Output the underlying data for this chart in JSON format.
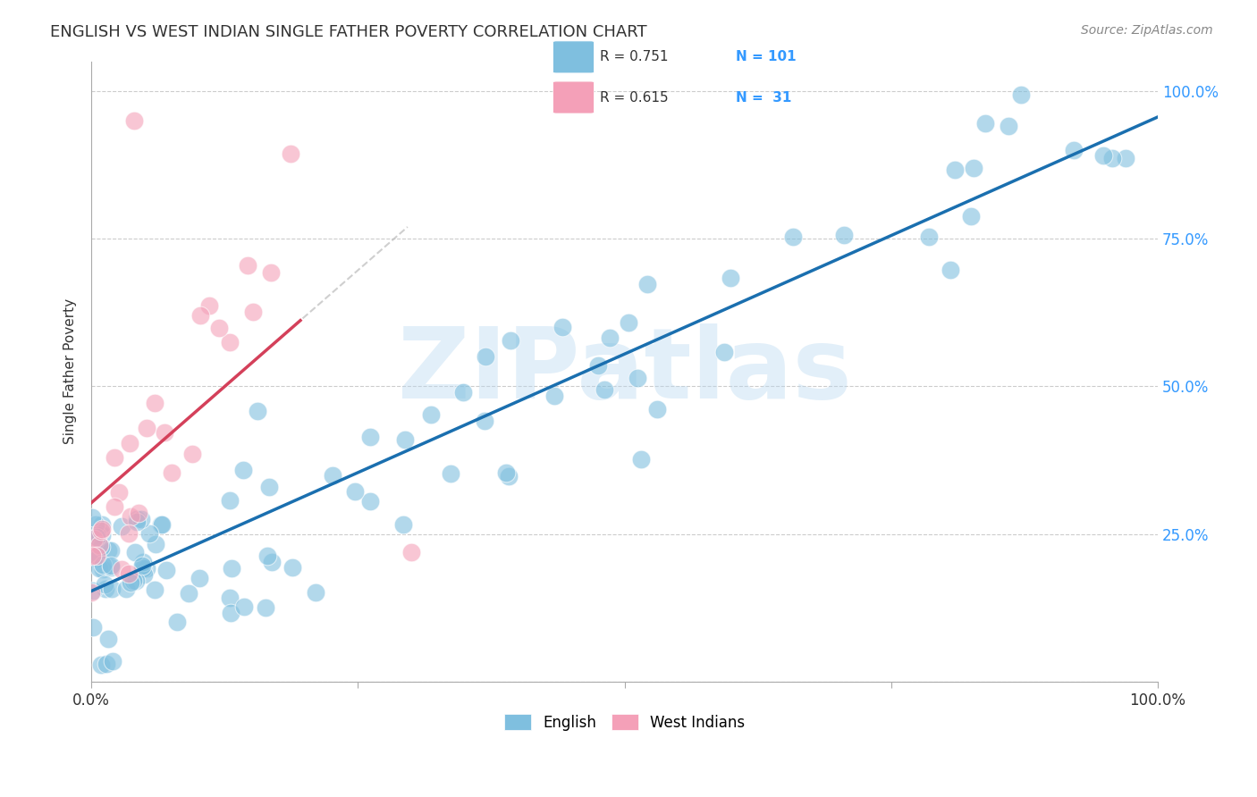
{
  "title": "ENGLISH VS WEST INDIAN SINGLE FATHER POVERTY CORRELATION CHART",
  "source": "Source: ZipAtlas.com",
  "ylabel": "Single Father Poverty",
  "english_R": 0.751,
  "english_N": 101,
  "westindian_R": 0.615,
  "westindian_N": 31,
  "english_color": "#7fbfdf",
  "westindian_color": "#f4a0b8",
  "english_line_color": "#1a6faf",
  "westindian_line_color": "#d4405a",
  "watermark": "ZIPatlas",
  "watermark_color": "#b8d8f0",
  "background_color": "#ffffff",
  "legend_R_color": "#333333",
  "legend_N_color": "#3399ff",
  "right_tick_color": "#3399ff",
  "grid_color": "#cccccc",
  "spine_color": "#aaaaaa"
}
